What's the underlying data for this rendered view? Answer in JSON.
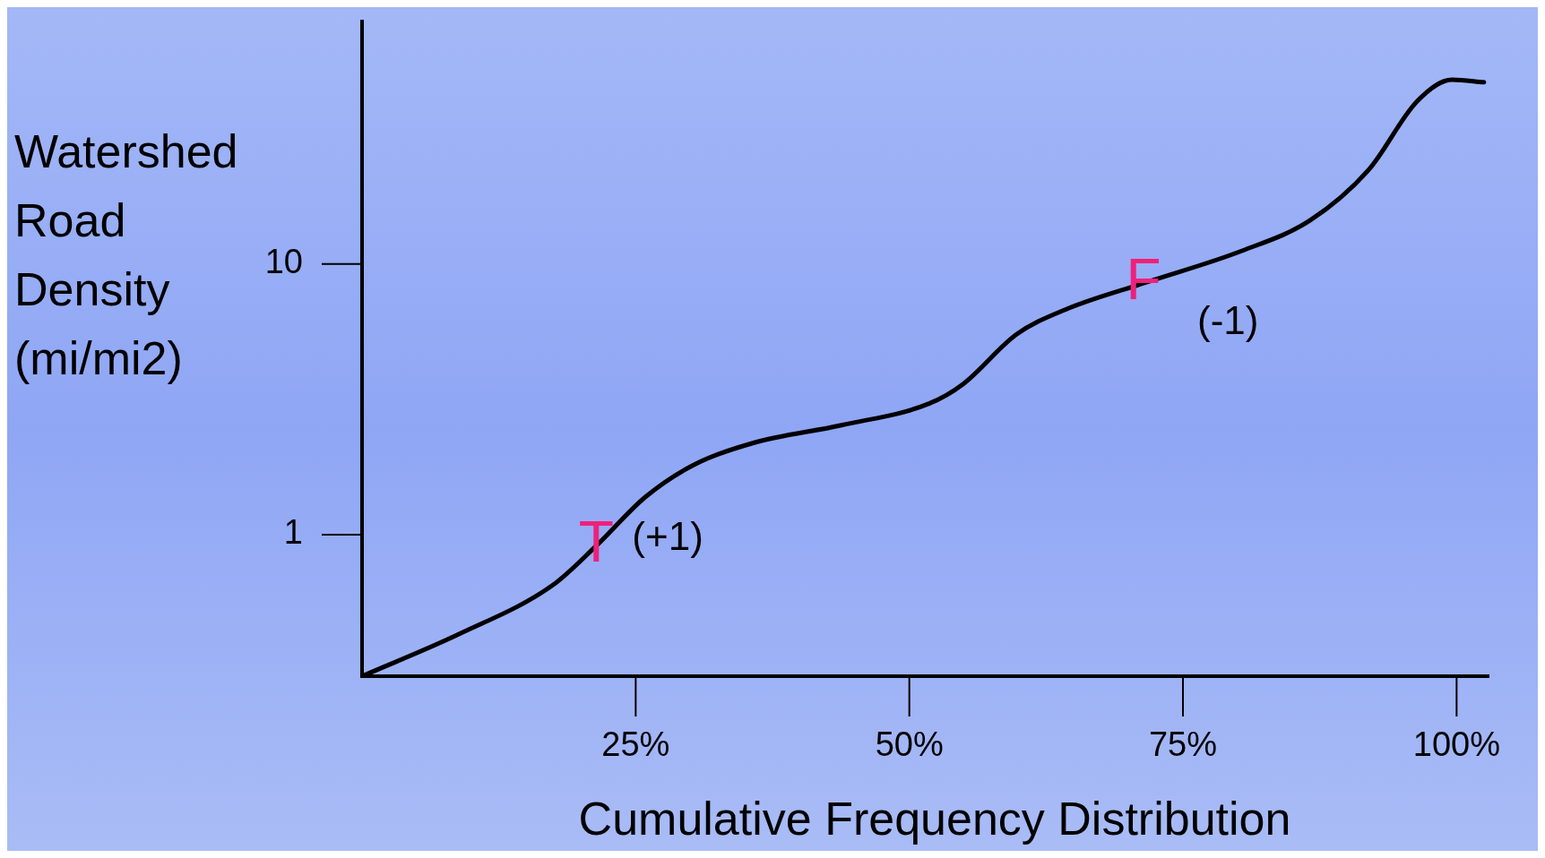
{
  "chart_data": {
    "type": "line",
    "xlabel": "Cumulative Frequency Distribution",
    "ylabel": "Watershed Road Density (mi/mi2)",
    "x": [
      0,
      8.9,
      17.4,
      21.4,
      25.9,
      30.4,
      35.7,
      43.8,
      51.8,
      54.9,
      59.8,
      64.3,
      71.4,
      80.4,
      86.6,
      92,
      96.4,
      99.6,
      102.5
    ],
    "series": [
      {
        "color": "#000000",
        "values": [
          0.3,
          0.43,
          0.65,
          0.91,
          1.38,
          1.82,
          2.18,
          2.54,
          3.05,
          3.6,
          5.5,
          6.8,
          8.5,
          11.2,
          14.5,
          22.4,
          40,
          48,
          47
        ]
      }
    ],
    "xlim": [
      0,
      103
    ],
    "xticks": [
      {
        "value": 25,
        "label": "25%"
      },
      {
        "value": 50,
        "label": "50%"
      },
      {
        "value": 75,
        "label": "75%"
      },
      {
        "value": 100,
        "label": "100%"
      }
    ],
    "ylim": [
      0.3,
      80
    ],
    "yticks": [
      1,
      10
    ],
    "log": "y",
    "grid": false,
    "legend": false,
    "marker": "none",
    "line_style": "solid",
    "annotations": [
      {
        "text": "T",
        "x": 21.4,
        "y": 0.91
      },
      "(+1)",
      {
        "text": "F",
        "x": 71.4,
        "y": 8.5
      },
      "(-1)"
    ]
  }
}
